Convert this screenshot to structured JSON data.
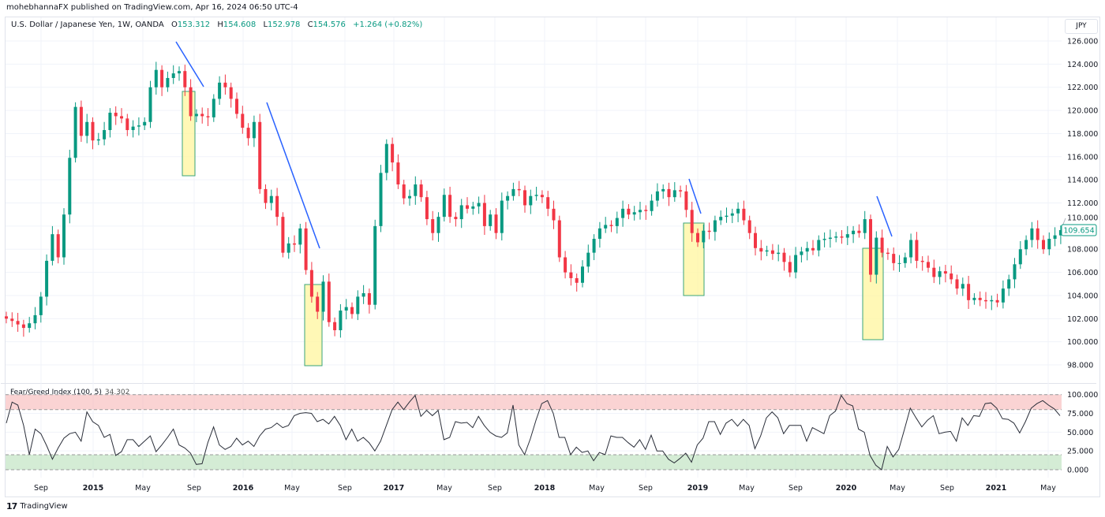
{
  "header": {
    "published": "mohebhannaFX published on TradingView.com, Apr 16, 2024 06:50 UTC-4"
  },
  "legend": {
    "symbol": "U.S. Dollar / Japanese Yen, 1W, OANDA",
    "o_label": "O",
    "o": "153.312",
    "h_label": "H",
    "h": "154.608",
    "l_label": "L",
    "l": "152.978",
    "c_label": "C",
    "c": "154.576",
    "change": "+1.264 (+0.82%)"
  },
  "currency_button": "JPY",
  "last_price_label": "109.654",
  "indicator": {
    "name": "Fear/Greed Index (100, 5)",
    "value": "34.302"
  },
  "footer": {
    "logo": "TradingView"
  },
  "colors": {
    "up": "#089981",
    "down": "#f23645",
    "trendline": "#2962ff",
    "highlight_fill": "#fff59d",
    "greed_band": "#f7b6b6",
    "fear_band": "#b7dfb9"
  },
  "chart_data": [
    {
      "type": "candlestick",
      "title": "U.S. Dollar / Japanese Yen, 1W, OANDA",
      "ylim": [
        97,
        127
      ],
      "y_ticks": [
        "126.000",
        "124.000",
        "122.000",
        "120.000",
        "118.000",
        "116.000",
        "114.000",
        "112.000",
        "110.000",
        "108.000",
        "106.000",
        "104.000",
        "102.000",
        "100.000",
        "98.000"
      ],
      "x_ticks": [
        "Sep",
        "2015",
        "May",
        "Sep",
        "2016",
        "May",
        "Sep",
        "2017",
        "May",
        "Sep",
        "2018",
        "May",
        "Sep",
        "2019",
        "May",
        "Sep",
        "2020",
        "May",
        "Sep",
        "2021",
        "May"
      ],
      "grid": true,
      "closes": [
        102.0,
        101.8,
        101.5,
        101.2,
        101.6,
        102.3,
        103.9,
        107.0,
        109.3,
        107.3,
        111.0,
        115.9,
        120.3,
        117.8,
        119.0,
        117.4,
        117.5,
        118.3,
        119.8,
        119.5,
        119.3,
        118.3,
        118.6,
        118.7,
        119.0,
        122.0,
        123.5,
        122.0,
        122.8,
        123.2,
        123.4,
        122.0,
        119.5,
        119.7,
        119.5,
        119.4,
        121.0,
        122.4,
        122.0,
        121.0,
        119.7,
        118.5,
        117.6,
        119.0,
        113.2,
        112.0,
        112.6,
        110.8,
        107.7,
        108.5,
        108.4,
        109.8,
        106.2,
        103.9,
        102.6,
        105.2,
        101.7,
        101.0,
        102.7,
        103.0,
        102.4,
        103.9,
        104.2,
        103.2,
        110.0,
        114.6,
        117.1,
        115.5,
        113.6,
        112.4,
        112.6,
        113.6,
        112.5,
        110.6,
        109.4,
        110.8,
        112.7,
        110.8,
        110.6,
        111.8,
        111.5,
        111.7,
        112.0,
        110.0,
        111.0,
        109.4,
        112.2,
        112.6,
        113.2,
        113.1,
        111.8,
        112.6,
        112.7,
        112.5,
        111.5,
        110.5,
        107.3,
        106.0,
        105.5,
        105.1,
        106.5,
        107.7,
        108.9,
        109.8,
        110.1,
        110.0,
        110.7,
        111.5,
        111.0,
        111.2,
        111.4,
        111.3,
        112.2,
        113.0,
        113.2,
        112.5,
        113.1,
        113.0,
        111.4,
        109.4,
        108.6,
        109.6,
        109.5,
        110.5,
        110.8,
        110.9,
        111.1,
        111.5,
        110.5,
        109.4,
        108.1,
        107.8,
        107.9,
        107.6,
        107.7,
        106.9,
        106.0,
        107.5,
        107.8,
        108.1,
        107.9,
        108.8,
        108.9,
        109.0,
        109.1,
        109.0,
        109.3,
        109.6,
        109.4,
        110.6,
        105.8,
        109.0,
        107.7,
        107.6,
        106.8,
        106.8,
        107.3,
        108.8,
        107.0,
        106.9,
        106.4,
        105.6,
        106.1,
        105.9,
        105.4,
        104.6,
        105.0,
        103.6,
        103.8,
        103.6,
        103.5,
        103.6,
        103.4,
        104.6,
        105.4,
        106.7,
        108.0,
        108.8,
        109.8,
        108.8,
        108.0,
        108.9,
        109.2,
        109.654
      ],
      "last_price": 109.654
    },
    {
      "type": "line",
      "title": "Fear/Greed Index (100, 5)",
      "ylim": [
        0,
        100
      ],
      "y_ticks": [
        "100.000",
        "75.000",
        "50.000",
        "25.000",
        "0.000"
      ],
      "bands": [
        {
          "from": 80,
          "to": 100
        },
        {
          "from": 0,
          "to": 20
        }
      ],
      "values": [
        62,
        90,
        86,
        59,
        20,
        54,
        48,
        32,
        14,
        29,
        42,
        48,
        50,
        38,
        77,
        64,
        59,
        43,
        47,
        19,
        24,
        40,
        40,
        31,
        38,
        45,
        24,
        33,
        43,
        54,
        33,
        29,
        22,
        7,
        8,
        36,
        57,
        33,
        27,
        31,
        42,
        33,
        38,
        31,
        45,
        54,
        56,
        62,
        56,
        59,
        72,
        75,
        76,
        75,
        64,
        67,
        61,
        71,
        59,
        40,
        54,
        38,
        43,
        36,
        25,
        38,
        59,
        80,
        90,
        80,
        90,
        99,
        71,
        79,
        72,
        79,
        40,
        43,
        64,
        62,
        63,
        56,
        71,
        59,
        50,
        45,
        43,
        49,
        86,
        33,
        20,
        41,
        66,
        88,
        92,
        75,
        43,
        43,
        20,
        30,
        23,
        25,
        12,
        23,
        20,
        45,
        43,
        43,
        36,
        30,
        40,
        27,
        46,
        25,
        25,
        14,
        9,
        15,
        22,
        10,
        33,
        42,
        64,
        64,
        47,
        62,
        67,
        58,
        67,
        59,
        28,
        45,
        69,
        77,
        69,
        48,
        59,
        59,
        59,
        38,
        56,
        52,
        48,
        72,
        78,
        99,
        88,
        85,
        54,
        50,
        19,
        6,
        0,
        31,
        17,
        27,
        54,
        82,
        69,
        57,
        66,
        72,
        48,
        50,
        51,
        38,
        69,
        59,
        72,
        71,
        88,
        89,
        82,
        68,
        67,
        62,
        49,
        64,
        82,
        88,
        92,
        86,
        81,
        72
      ]
    }
  ]
}
